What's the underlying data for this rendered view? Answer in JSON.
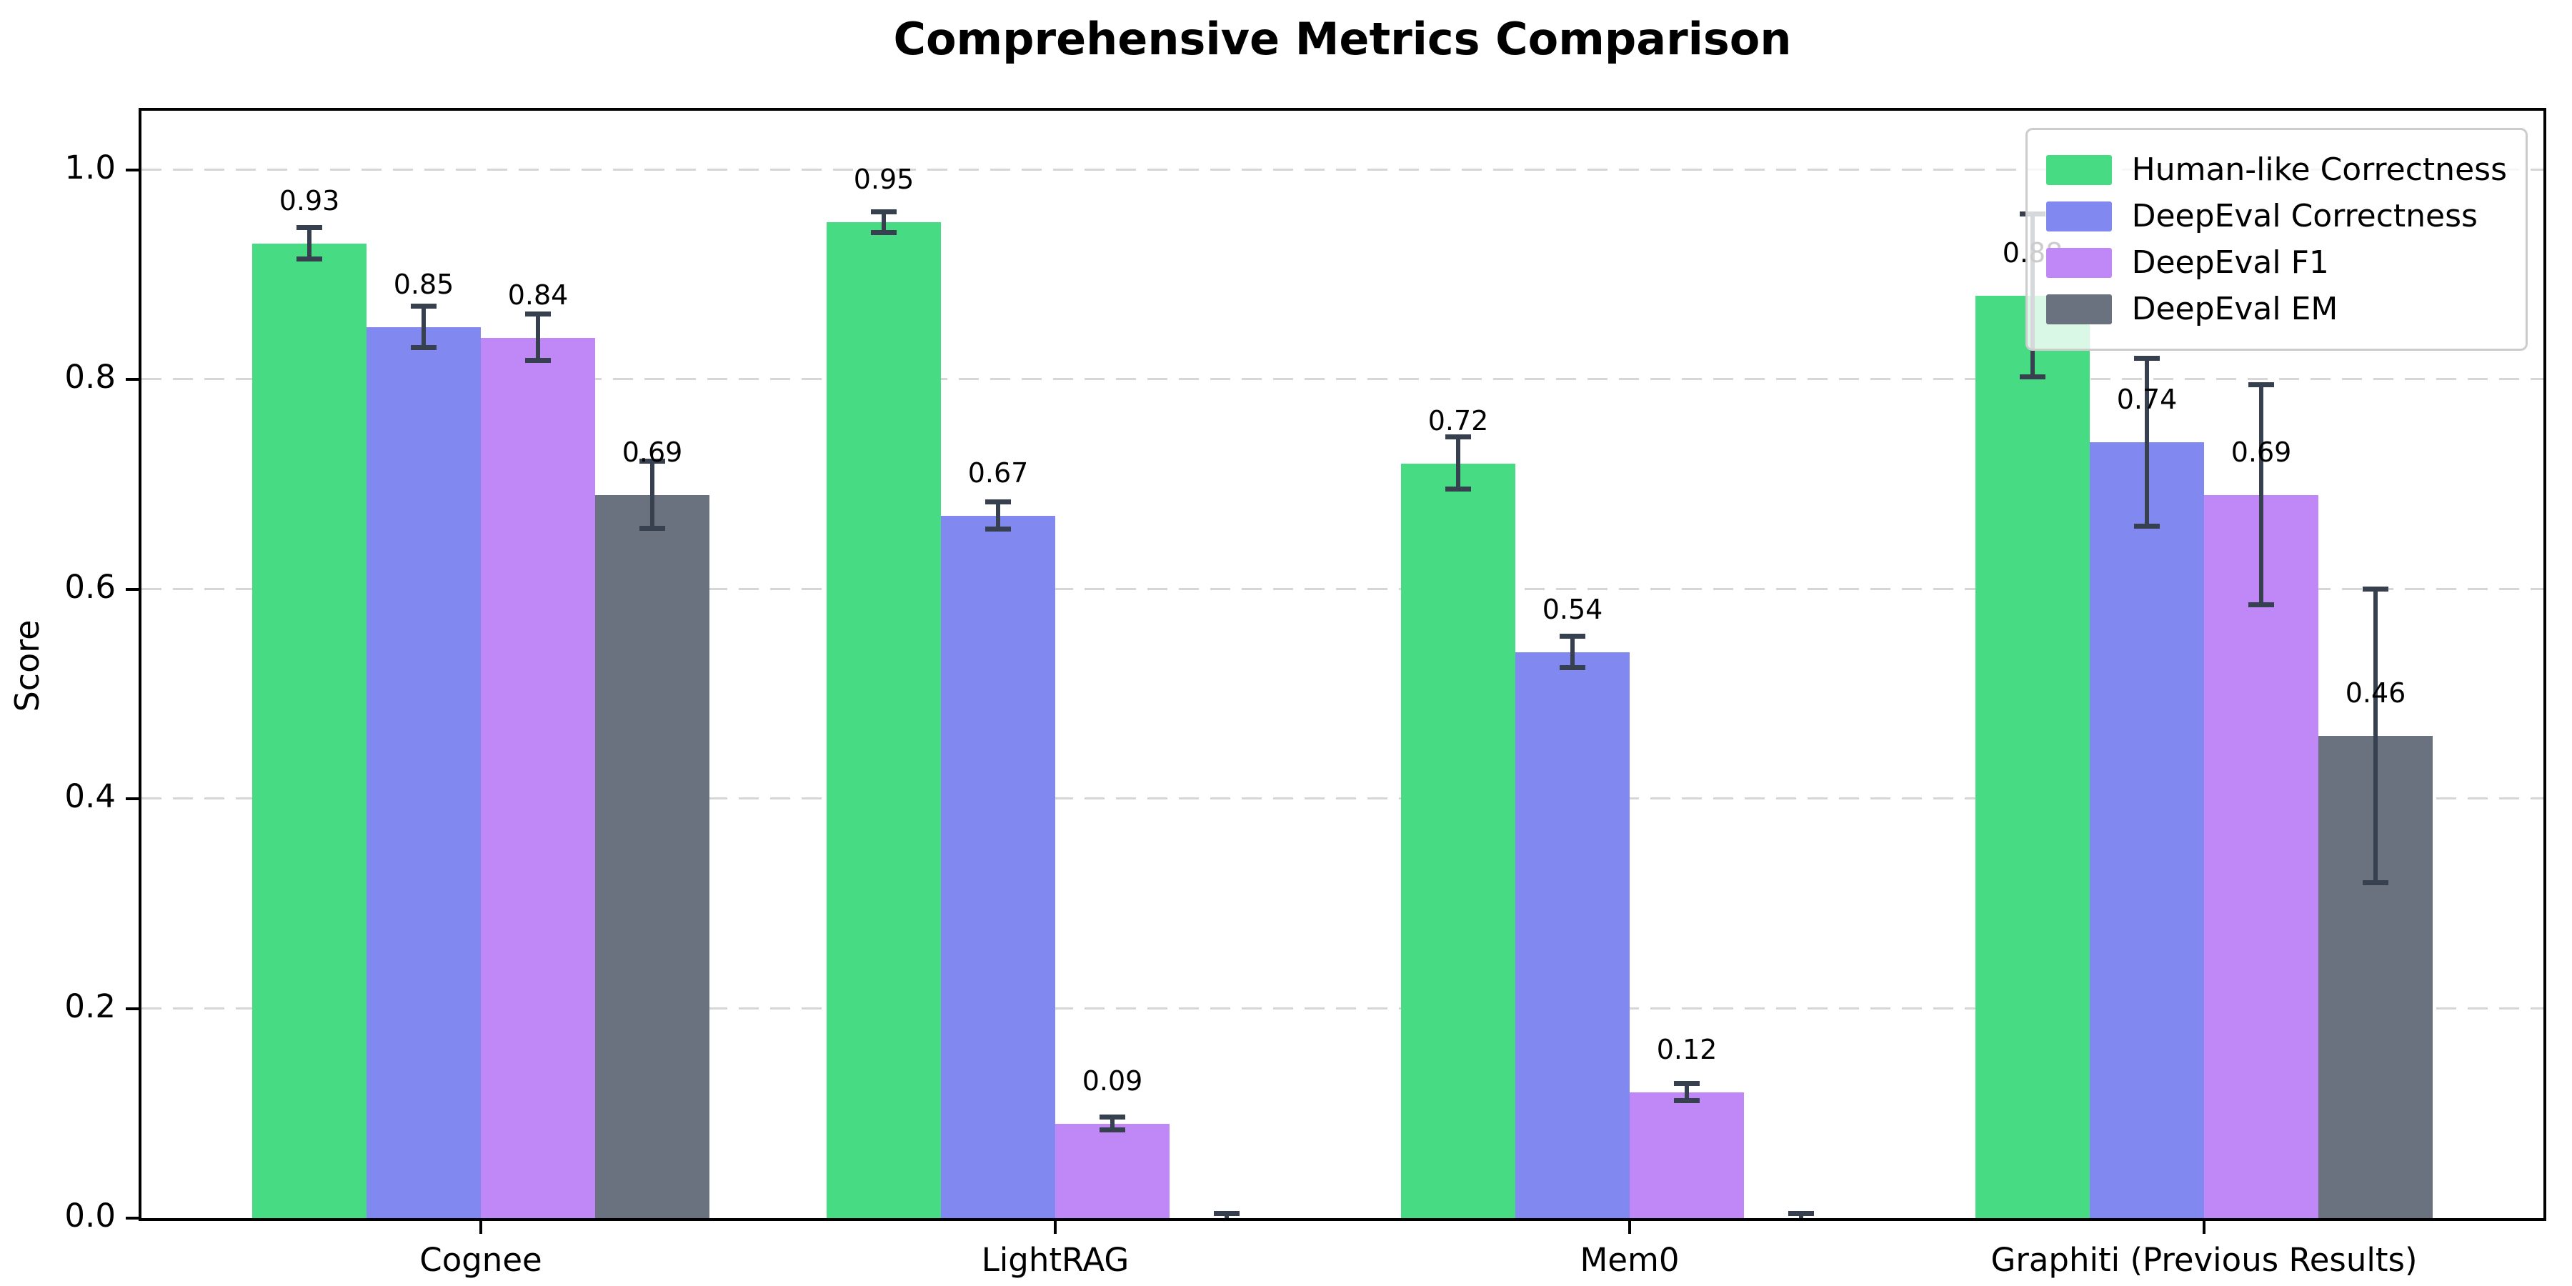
{
  "chart_data": {
    "type": "bar",
    "title": "Comprehensive Metrics Comparison",
    "ylabel": "Score",
    "categories": [
      "Cognee",
      "LightRAG",
      "Mem0",
      "Graphiti (Previous Results)"
    ],
    "series": [
      {
        "name": "Human-like Correctness",
        "color": "#47dc83",
        "values": [
          0.93,
          0.95,
          0.72,
          0.88
        ],
        "errors": [
          0.015,
          0.01,
          0.025,
          0.078
        ],
        "labels": [
          "0.93",
          "0.95",
          "0.72",
          "0.88"
        ]
      },
      {
        "name": "DeepEval Correctness",
        "color": "#8189f0",
        "values": [
          0.85,
          0.67,
          0.54,
          0.74
        ],
        "errors": [
          0.02,
          0.013,
          0.015,
          0.08
        ],
        "labels": [
          "0.85",
          "0.67",
          "0.54",
          "0.74"
        ]
      },
      {
        "name": "DeepEval F1",
        "color": "#bf88f6",
        "values": [
          0.84,
          0.09,
          0.12,
          0.69
        ],
        "errors": [
          0.022,
          0.006,
          0.008,
          0.105
        ],
        "labels": [
          "0.84",
          "0.09",
          "0.12",
          "0.69"
        ]
      },
      {
        "name": "DeepEval EM",
        "color": "#6a7280",
        "values": [
          0.69,
          0.0,
          0.0,
          0.46
        ],
        "errors": [
          0.032,
          0.004,
          0.004,
          0.14
        ],
        "labels": [
          "0.69",
          "",
          "",
          "0.46"
        ]
      }
    ],
    "ylim": [
      0,
      1.057
    ],
    "yticks": [
      0.0,
      0.2,
      0.4,
      0.6,
      0.8,
      1.0
    ],
    "ytick_labels": [
      "0.0",
      "0.2",
      "0.4",
      "0.6",
      "0.8",
      "1.0"
    ],
    "grid": "horizontal-dashed",
    "legend_position": "upper right",
    "error_bar_color": "#36404e"
  }
}
